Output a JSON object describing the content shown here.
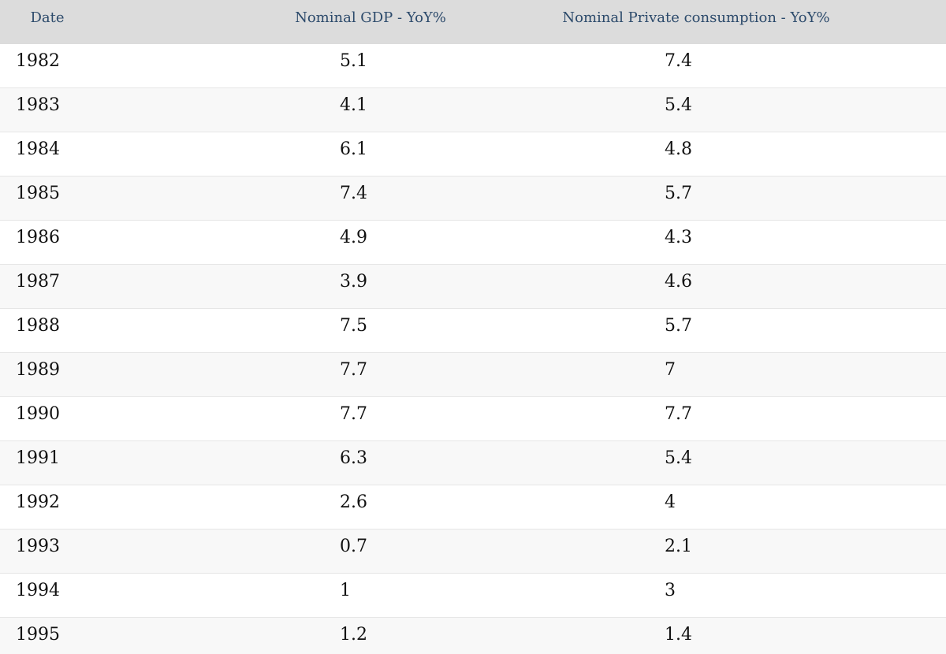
{
  "chart_data": {
    "type": "table",
    "columns": [
      "Date",
      "Nominal GDP - YoY%",
      "Nominal Private consumption - YoY%"
    ],
    "rows": [
      [
        "1982",
        "5.1",
        "7.4"
      ],
      [
        "1983",
        "4.1",
        "5.4"
      ],
      [
        "1984",
        "6.1",
        "4.8"
      ],
      [
        "1985",
        "7.4",
        "5.7"
      ],
      [
        "1986",
        "4.9",
        "4.3"
      ],
      [
        "1987",
        "3.9",
        "4.6"
      ],
      [
        "1988",
        "7.5",
        "5.7"
      ],
      [
        "1989",
        "7.7",
        "7"
      ],
      [
        "1990",
        "7.7",
        "7.7"
      ],
      [
        "1991",
        "6.3",
        "5.4"
      ],
      [
        "1992",
        "2.6",
        "4"
      ],
      [
        "1993",
        "0.7",
        "2.1"
      ],
      [
        "1994",
        "1",
        "3"
      ],
      [
        "1995",
        "1.2",
        "1.4"
      ]
    ]
  },
  "colors": {
    "header_bg": "#dcdcdc",
    "header_text": "#2c4a6b",
    "row_alt_bg": "#f8f8f8",
    "row_bg": "#ffffff"
  }
}
